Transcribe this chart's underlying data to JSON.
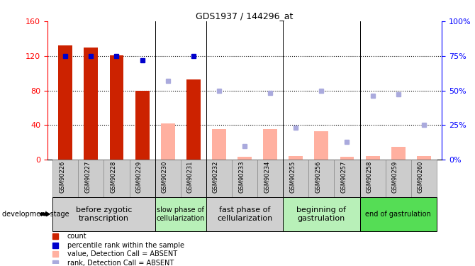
{
  "title": "GDS1937 / 144296_at",
  "samples": [
    "GSM90226",
    "GSM90227",
    "GSM90228",
    "GSM90229",
    "GSM90230",
    "GSM90231",
    "GSM90232",
    "GSM90233",
    "GSM90234",
    "GSM90255",
    "GSM90256",
    "GSM90257",
    "GSM90258",
    "GSM90259",
    "GSM90260"
  ],
  "count_values": [
    132,
    130,
    121,
    80,
    null,
    93,
    null,
    null,
    null,
    null,
    null,
    null,
    null,
    null,
    null
  ],
  "rank_values": [
    75,
    75,
    75,
    72,
    null,
    75,
    null,
    null,
    null,
    null,
    null,
    null,
    null,
    null,
    null
  ],
  "absent_value": [
    null,
    null,
    null,
    null,
    42,
    null,
    35,
    3,
    35,
    4,
    33,
    3,
    4,
    15,
    4
  ],
  "absent_rank": [
    null,
    null,
    null,
    null,
    57,
    null,
    50,
    10,
    null,
    null,
    50,
    null,
    null,
    47,
    null
  ],
  "absent_rank2": [
    null,
    null,
    null,
    null,
    null,
    null,
    null,
    null,
    48,
    23,
    null,
    13,
    46,
    null,
    25
  ],
  "ylim_left": [
    0,
    160
  ],
  "ylim_right": [
    0,
    100
  ],
  "yticks_left": [
    0,
    40,
    80,
    120,
    160
  ],
  "yticks_right": [
    0,
    25,
    50,
    75,
    100
  ],
  "ytick_labels_right": [
    "0%",
    "25%",
    "50%",
    "75%",
    "100%"
  ],
  "groups": [
    {
      "label": "before zygotic\ntranscription",
      "cols": 4,
      "color": "#d0d0d0",
      "fontsize": 8
    },
    {
      "label": "slow phase of\ncellularization",
      "cols": 2,
      "color": "#b8f0b8",
      "fontsize": 7
    },
    {
      "label": "fast phase of\ncellularization",
      "cols": 3,
      "color": "#d0d0d0",
      "fontsize": 8
    },
    {
      "label": "beginning of\ngastrulation",
      "cols": 3,
      "color": "#b8f0b8",
      "fontsize": 8
    },
    {
      "label": "end of gastrulation",
      "cols": 3,
      "color": "#55dd55",
      "fontsize": 7
    }
  ],
  "bar_color_present": "#cc2200",
  "bar_color_absent": "#ffb0a0",
  "dot_color_present": "#0000cc",
  "dot_color_absent": "#aaaadd",
  "bar_width": 0.55,
  "xlabel_fontsize": 6.5,
  "tick_bg_color": "#cccccc"
}
